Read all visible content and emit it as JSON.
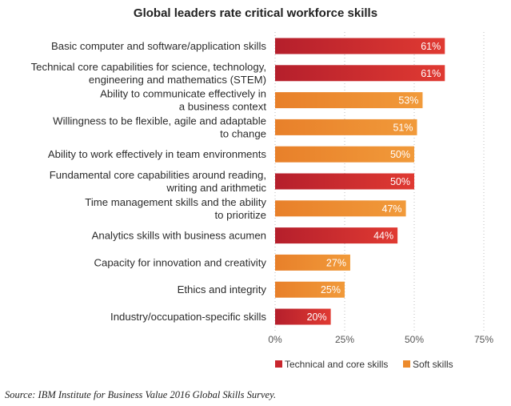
{
  "chart_data": {
    "type": "bar",
    "orientation": "horizontal",
    "title": "Global leaders rate critical workforce skills",
    "categories": [
      [
        "Basic computer and software/application skills"
      ],
      [
        "Technical core capabilities for science, technology,",
        "engineering and mathematics (STEM)"
      ],
      [
        "Ability to communicate effectively in",
        "a business context"
      ],
      [
        "Willingness to be flexible, agile and adaptable",
        "to change"
      ],
      [
        "Ability to work effectively in team environments"
      ],
      [
        "Fundamental core capabilities around reading,",
        "writing and arithmetic"
      ],
      [
        "Time management skills and the ability",
        "to prioritize"
      ],
      [
        "Analytics skills with business acumen"
      ],
      [
        "Capacity for innovation and creativity"
      ],
      [
        "Ethics and integrity"
      ],
      [
        "Industry/occupation-specific skills"
      ]
    ],
    "values": [
      61,
      61,
      53,
      51,
      50,
      50,
      47,
      44,
      27,
      25,
      20
    ],
    "value_labels": [
      "61%",
      "61%",
      "53%",
      "51%",
      "50%",
      "50%",
      "47%",
      "44%",
      "27%",
      "25%",
      "20%"
    ],
    "skill_group": [
      "technical",
      "technical",
      "soft",
      "soft",
      "soft",
      "technical",
      "soft",
      "technical",
      "soft",
      "soft",
      "technical"
    ],
    "x_ticks": [
      0,
      25,
      50,
      75
    ],
    "x_tick_labels": [
      "0%",
      "25%",
      "50%",
      "75%"
    ],
    "xlim": [
      0,
      75
    ],
    "legend": [
      {
        "key": "technical",
        "label": "Technical and core skills",
        "color": "#c8262d"
      },
      {
        "key": "soft",
        "label": "Soft skills",
        "color": "#ec8a2b"
      }
    ],
    "legend_position": "bottom-right",
    "gridlines": true
  },
  "source": "Source: IBM Institute for Business Value 2016 Global Skills Survey."
}
